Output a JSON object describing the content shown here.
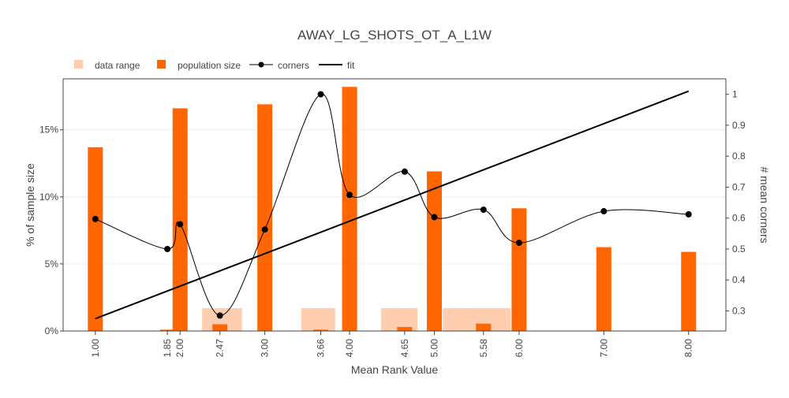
{
  "chart_data": {
    "type": "bar",
    "title": "AWAY_LG_SHOTS_OT_A_L1W",
    "xlabel": "Mean Rank Value",
    "ylabel": "% of sample size",
    "y2label": "# mean corners",
    "xlim": [
      0.62,
      8.44
    ],
    "ylim": [
      0,
      18.8
    ],
    "y2lim": [
      0.235,
      1.05
    ],
    "x_ticks": [
      "1.00",
      "1.85",
      "2.00",
      "2.47",
      "3.00",
      "3.66",
      "4.00",
      "4.65",
      "5.00",
      "5.58",
      "6.00",
      "7.00",
      "8.00"
    ],
    "y_ticks": [
      "0%",
      "5%",
      "10%",
      "15%"
    ],
    "y2_ticks": [
      "0.3",
      "0.4",
      "0.5",
      "0.6",
      "0.7",
      "0.8",
      "0.9",
      "1"
    ],
    "grid": true,
    "legend_position": "top-left",
    "colors": {
      "data_range": "#ffcdb0",
      "population": "#ff6600",
      "corners": "#000000",
      "fit": "#000000",
      "grid": "#eeeeee"
    },
    "legend": [
      "data range",
      "population size",
      "corners",
      "fit"
    ],
    "data_range": [
      {
        "x0": 2.26,
        "x1": 2.73,
        "height": 1.7
      },
      {
        "x0": 3.43,
        "x1": 3.83,
        "height": 1.7
      },
      {
        "x0": 4.37,
        "x1": 4.8,
        "height": 1.7
      },
      {
        "x0": 5.1,
        "x1": 5.9,
        "height": 1.7
      }
    ],
    "population": {
      "x": [
        1.0,
        1.85,
        2.0,
        2.47,
        3.0,
        3.66,
        4.0,
        4.65,
        5.0,
        5.58,
        6.0,
        7.0,
        8.0
      ],
      "values": [
        13.7,
        0.1,
        16.6,
        0.5,
        16.9,
        0.1,
        18.2,
        0.3,
        11.9,
        0.55,
        9.15,
        6.25,
        5.9
      ]
    },
    "corners": {
      "x": [
        1.0,
        1.85,
        2.0,
        2.47,
        3.0,
        3.66,
        4.0,
        4.65,
        5.0,
        5.58,
        6.0,
        7.0,
        8.0
      ],
      "values": [
        0.597,
        0.5,
        0.58,
        0.285,
        0.563,
        1.0,
        0.675,
        0.75,
        0.603,
        0.627,
        0.52,
        0.622,
        0.612
      ]
    },
    "fit": {
      "x": [
        1.0,
        8.0
      ],
      "values": [
        0.275,
        1.01
      ]
    }
  }
}
